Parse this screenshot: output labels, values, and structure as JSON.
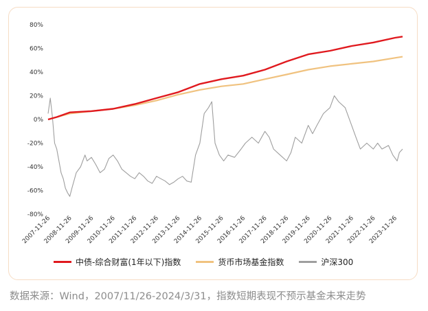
{
  "colors": {
    "bond_index": "#e0191e",
    "money_market": "#f0c27f",
    "csi300": "#9e9e9e",
    "border": "#f6dcc4"
  },
  "chart_data": {
    "type": "line",
    "title": "",
    "xlabel": "",
    "ylabel": "",
    "ylim": [
      -80,
      80
    ],
    "y_ticks": [
      "80%",
      "60%",
      "40%",
      "20%",
      "0%",
      "-20%",
      "-40%",
      "-60%",
      "-80%"
    ],
    "x_ticks": [
      "2007-11-26",
      "2008-11-26",
      "2009-11-26",
      "2010-11-26",
      "2011-11-26",
      "2012-11-26",
      "2013-11-26",
      "2014-11-26",
      "2015-11-26",
      "2016-11-26",
      "2017-11-26",
      "2018-11-26",
      "2019-11-26",
      "2020-11-26",
      "2021-11-26",
      "2022-11-26",
      "2023-11-26"
    ],
    "legend_position": "bottom",
    "grid": false,
    "series": [
      {
        "name": "中债-综合财富(1年以下)指数",
        "color": "#e0191e",
        "x": [
          2007.9,
          2008.3,
          2008.9,
          2009.9,
          2010.9,
          2011.9,
          2012.9,
          2013.9,
          2014.9,
          2015.9,
          2016.9,
          2017.9,
          2018.9,
          2019.9,
          2020.9,
          2021.9,
          2022.9,
          2023.9,
          2024.25
        ],
        "values": [
          0,
          2,
          6,
          7,
          9,
          13,
          18,
          23,
          30,
          34,
          37,
          42,
          49,
          55,
          58,
          62,
          65,
          69,
          70
        ]
      },
      {
        "name": "货币市场基金指数",
        "color": "#f0c27f",
        "x": [
          2007.9,
          2008.9,
          2009.9,
          2010.9,
          2011.9,
          2012.9,
          2013.9,
          2014.9,
          2015.9,
          2016.9,
          2017.9,
          2018.9,
          2019.9,
          2020.9,
          2021.9,
          2022.9,
          2023.9,
          2024.25
        ],
        "values": [
          0,
          5,
          7,
          9,
          12,
          16,
          21,
          25,
          28,
          30,
          34,
          38,
          42,
          45,
          47,
          49,
          52,
          53
        ]
      },
      {
        "name": "沪深300",
        "color": "#9e9e9e",
        "x": [
          2007.9,
          2008.0,
          2008.1,
          2008.2,
          2008.3,
          2008.4,
          2008.5,
          2008.6,
          2008.7,
          2008.8,
          2008.9,
          2009.0,
          2009.2,
          2009.4,
          2009.6,
          2009.7,
          2009.9,
          2010.1,
          2010.3,
          2010.5,
          2010.7,
          2010.9,
          2011.1,
          2011.3,
          2011.5,
          2011.7,
          2011.9,
          2012.1,
          2012.3,
          2012.5,
          2012.7,
          2012.9,
          2013.1,
          2013.3,
          2013.5,
          2013.7,
          2013.9,
          2014.1,
          2014.3,
          2014.5,
          2014.7,
          2014.9,
          2015.1,
          2015.3,
          2015.45,
          2015.6,
          2015.8,
          2016.0,
          2016.2,
          2016.5,
          2016.8,
          2017.0,
          2017.3,
          2017.6,
          2017.9,
          2018.1,
          2018.3,
          2018.6,
          2018.9,
          2019.1,
          2019.3,
          2019.6,
          2019.9,
          2020.1,
          2020.3,
          2020.6,
          2020.9,
          2021.1,
          2021.3,
          2021.6,
          2021.9,
          2022.1,
          2022.3,
          2022.6,
          2022.9,
          2023.1,
          2023.3,
          2023.6,
          2023.8,
          2024.0,
          2024.1,
          2024.25
        ],
        "values": [
          5,
          18,
          2,
          -20,
          -25,
          -35,
          -45,
          -50,
          -58,
          -62,
          -65,
          -58,
          -45,
          -40,
          -30,
          -35,
          -32,
          -38,
          -45,
          -42,
          -33,
          -30,
          -35,
          -42,
          -45,
          -48,
          -50,
          -45,
          -48,
          -52,
          -54,
          -48,
          -50,
          -52,
          -55,
          -53,
          -50,
          -48,
          -52,
          -53,
          -30,
          -20,
          5,
          10,
          15,
          -20,
          -30,
          -35,
          -30,
          -32,
          -25,
          -20,
          -15,
          -20,
          -10,
          -15,
          -25,
          -30,
          -35,
          -28,
          -15,
          -20,
          -5,
          -12,
          -5,
          5,
          10,
          20,
          15,
          10,
          -5,
          -15,
          -25,
          -20,
          -25,
          -20,
          -25,
          -22,
          -30,
          -35,
          -28,
          -25
        ]
      }
    ]
  },
  "footer": {
    "source": "数据来源：Wind，2007/11/26-2024/3/31，指数短期表现不预示基金未来走势"
  }
}
